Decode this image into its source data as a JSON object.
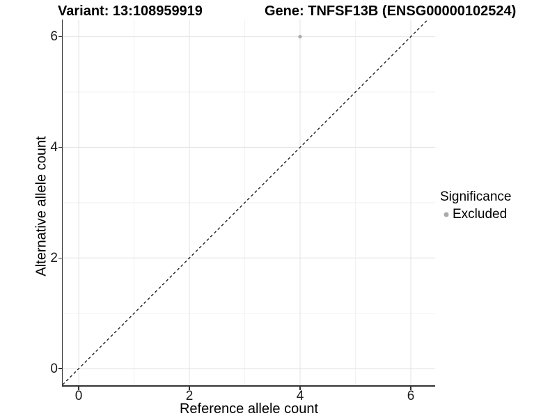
{
  "titles": {
    "variant": "Variant: 13:108959919",
    "gene": "Gene: TNFSF13B (ENSG00000102524)"
  },
  "legend": {
    "title": "Significance",
    "items": [
      {
        "label": "Excluded",
        "color": "#aaaaaa",
        "marker": "dot-icon"
      }
    ]
  },
  "chart_data": {
    "type": "scatter",
    "title": "Variant: 13:108959919   Gene: TNFSF13B (ENSG00000102524)",
    "xlabel": "Reference allele count",
    "ylabel": "Alternative allele count",
    "xlim": [
      -0.29,
      6.44
    ],
    "ylim": [
      -0.3,
      6.31
    ],
    "x_ticks": [
      0,
      2,
      4,
      6
    ],
    "y_ticks": [
      0,
      2,
      4,
      6
    ],
    "x_minor_ticks": [
      1,
      3,
      5
    ],
    "y_minor_ticks": [
      1,
      3,
      5
    ],
    "grid": "on",
    "legend_position": "right-center",
    "reference_line": {
      "kind": "identity y=x",
      "style": "dashed",
      "color": "#000000",
      "dash": [
        4,
        3.5
      ]
    },
    "series": [
      {
        "name": "Excluded",
        "color": "#aaaaaa",
        "points": [
          {
            "x": 4,
            "y": 6
          }
        ]
      }
    ],
    "colors": {
      "grid_major": "#e4e4e4",
      "grid_minor": "#f1f1f1",
      "axis_line": "#333333",
      "background": "#ffffff"
    }
  }
}
